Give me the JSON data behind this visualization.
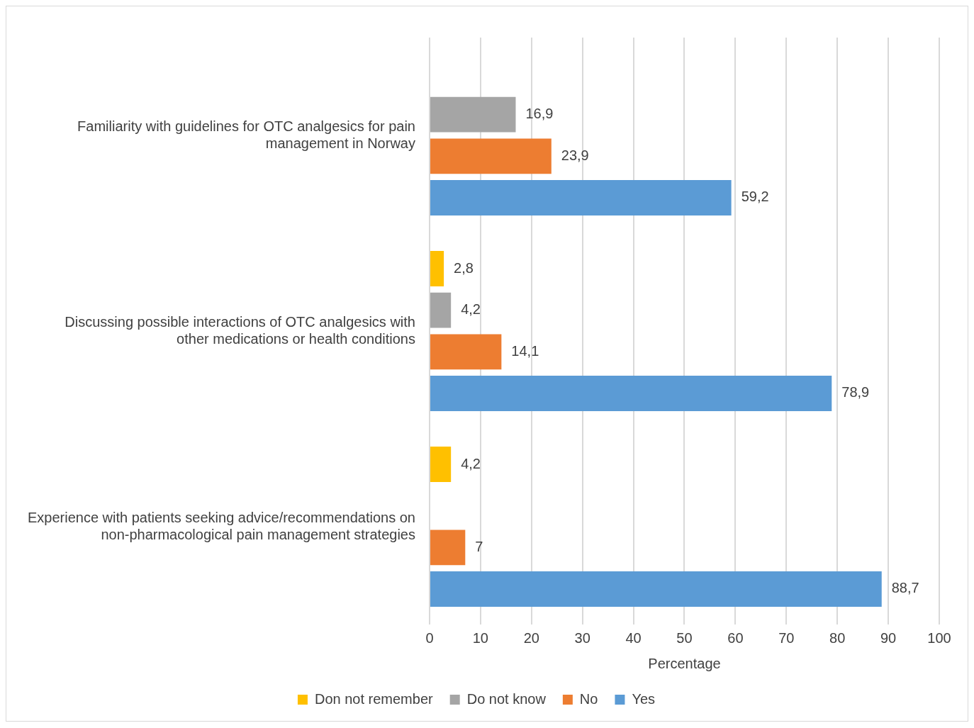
{
  "chart_data": {
    "type": "bar",
    "orientation": "horizontal",
    "categories": [
      "Familiarity with guidelines for OTC analgesics for pain management in Norway",
      "Discussing possible interactions of OTC analgesics with other medications or health conditions",
      "Experience with patients seeking advice/recommendations on non-pharmacological pain management strategies"
    ],
    "series": [
      {
        "name": "Don not remember",
        "color": "#ffc000",
        "values": [
          null,
          2.8,
          4.2
        ],
        "value_labels": [
          null,
          "2,8",
          "4,2"
        ]
      },
      {
        "name": "Do not know",
        "color": "#a5a5a5",
        "values": [
          16.9,
          4.2,
          null
        ],
        "value_labels": [
          "16,9",
          "4,2",
          null
        ]
      },
      {
        "name": "No",
        "color": "#ed7d31",
        "values": [
          23.9,
          14.1,
          7
        ],
        "value_labels": [
          "23,9",
          "14,1",
          "7"
        ]
      },
      {
        "name": "Yes",
        "color": "#5b9bd5",
        "values": [
          59.2,
          78.9,
          88.7
        ],
        "value_labels": [
          "59,2",
          "78,9",
          "88,7"
        ]
      }
    ],
    "xlabel": "Percentage",
    "xlim": [
      0,
      100
    ],
    "xticks": [
      0,
      10,
      20,
      30,
      40,
      50,
      60,
      70,
      80,
      90,
      100
    ],
    "grid": "x",
    "legend": "bottom"
  }
}
